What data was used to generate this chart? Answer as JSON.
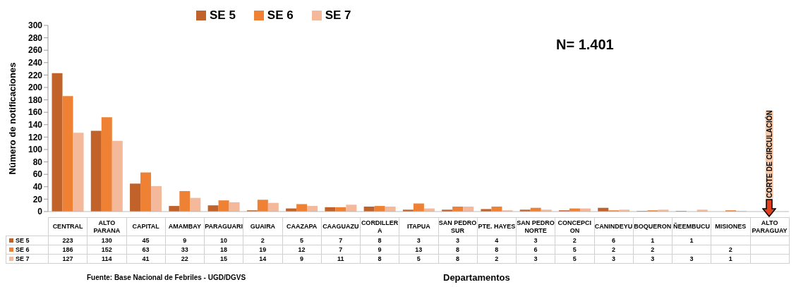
{
  "chart_data": {
    "type": "bar",
    "xlabel": "Departamentos",
    "ylabel": "Número de notificaciones",
    "categories": [
      "CENTRAL",
      "ALTO PARANA",
      "CAPITAL",
      "AMAMBAY",
      "PARAGUARI",
      "GUAIRA",
      "CAAZAPA",
      "CAAGUAZU",
      "CORDILLERA",
      "ITAPUA",
      "SAN PEDRO SUR",
      "PTE. HAYES",
      "SAN PEDRO NORTE",
      "CONCEPCION",
      "CANINDEYU",
      "BOQUERON",
      "ÑEEMBUCU",
      "MISIONES",
      "ALTO PARAGUAY"
    ],
    "series": [
      {
        "name": "SE 5",
        "color": "#c0622a",
        "values": [
          223,
          130,
          45,
          9,
          10,
          2,
          5,
          7,
          8,
          3,
          3,
          4,
          3,
          2,
          6,
          1,
          1,
          null,
          null
        ]
      },
      {
        "name": "SE 6",
        "color": "#ee8133",
        "values": [
          186,
          152,
          63,
          33,
          18,
          19,
          12,
          7,
          9,
          13,
          8,
          8,
          6,
          5,
          2,
          2,
          null,
          2,
          null
        ]
      },
      {
        "name": "SE 7",
        "color": "#f4b89a",
        "values": [
          127,
          114,
          41,
          22,
          15,
          14,
          9,
          11,
          8,
          5,
          8,
          2,
          3,
          5,
          3,
          3,
          3,
          1,
          null
        ]
      }
    ],
    "ylim": [
      0,
      300
    ],
    "yticks": [
      0,
      20,
      40,
      60,
      80,
      100,
      120,
      140,
      160,
      180,
      200,
      220,
      240,
      260,
      280,
      300
    ],
    "grid": false,
    "legend": "top",
    "data_labels": true,
    "annotations": [
      "N= 1.401",
      "CORTE DE CIRCULACIÓN",
      "Fuente: Base Nacional de  Febriles - UGD/DGVS"
    ]
  }
}
